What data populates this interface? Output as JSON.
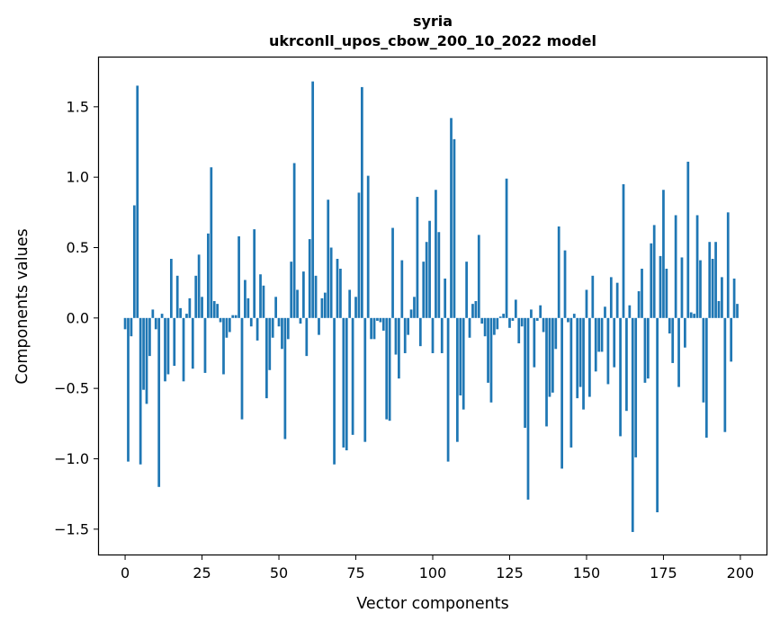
{
  "chart_data": {
    "type": "bar",
    "title": "syria",
    "subtitle": "ukrconll_upos_cbow_200_10_2022 model",
    "xlabel": "Vector components",
    "ylabel": "Components values",
    "xlim": [
      -8.5,
      208.5
    ],
    "ylim": [
      -1.68,
      1.85
    ],
    "xticks": [
      0,
      25,
      50,
      75,
      100,
      125,
      150,
      175,
      200
    ],
    "yticks": [
      -1.5,
      -1.0,
      -0.5,
      0.0,
      0.5,
      1.0,
      1.5
    ],
    "ytick_labels": [
      "−1.5",
      "−1.0",
      "−0.5",
      "0.0",
      "0.5",
      "1.0",
      "1.5"
    ],
    "grid": false,
    "bar_color": "#1f77b4",
    "values": [
      -0.08,
      -1.02,
      -0.13,
      0.8,
      1.65,
      -1.04,
      -0.51,
      -0.61,
      -0.27,
      0.06,
      -0.08,
      -1.2,
      0.03,
      -0.45,
      -0.4,
      0.42,
      -0.34,
      0.3,
      0.07,
      -0.45,
      0.03,
      0.14,
      -0.36,
      0.3,
      0.45,
      0.15,
      -0.39,
      0.6,
      1.07,
      0.12,
      0.1,
      -0.03,
      -0.4,
      -0.14,
      -0.1,
      0.02,
      0.02,
      0.58,
      -0.72,
      0.27,
      0.14,
      -0.06,
      0.63,
      -0.16,
      0.31,
      0.23,
      -0.57,
      -0.37,
      -0.14,
      0.15,
      -0.06,
      -0.22,
      -0.86,
      -0.15,
      0.4,
      1.1,
      0.2,
      -0.04,
      0.33,
      -0.27,
      0.56,
      1.68,
      0.3,
      -0.12,
      0.14,
      0.18,
      0.84,
      0.5,
      -1.04,
      0.42,
      0.35,
      -0.92,
      -0.94,
      0.2,
      -0.83,
      0.15,
      0.89,
      1.64,
      -0.88,
      1.01,
      -0.15,
      -0.15,
      -0.02,
      -0.03,
      -0.09,
      -0.72,
      -0.73,
      0.64,
      -0.26,
      -0.43,
      0.41,
      -0.25,
      -0.12,
      0.06,
      0.15,
      0.86,
      -0.2,
      0.4,
      0.54,
      0.69,
      -0.25,
      0.91,
      0.61,
      -0.25,
      0.28,
      -1.02,
      1.42,
      1.27,
      -0.88,
      -0.55,
      -0.65,
      0.4,
      -0.14,
      0.1,
      0.12,
      0.59,
      -0.04,
      -0.13,
      -0.46,
      -0.6,
      -0.12,
      -0.08,
      0.01,
      0.03,
      0.99,
      -0.07,
      -0.02,
      0.13,
      -0.18,
      -0.06,
      -0.78,
      -1.29,
      0.06,
      -0.35,
      -0.02,
      0.09,
      -0.1,
      -0.77,
      -0.56,
      -0.53,
      -0.22,
      0.65,
      -1.07,
      0.48,
      -0.03,
      -0.92,
      0.03,
      -0.57,
      -0.49,
      -0.65,
      0.2,
      -0.56,
      0.3,
      -0.38,
      -0.24,
      -0.24,
      0.08,
      -0.47,
      0.29,
      -0.35,
      0.25,
      -0.84,
      0.95,
      -0.66,
      0.09,
      -1.52,
      -0.99,
      0.19,
      0.35,
      -0.46,
      -0.43,
      0.53,
      0.66,
      -1.38,
      0.44,
      0.91,
      0.35,
      -0.11,
      -0.32,
      0.73,
      -0.49,
      0.43,
      -0.21,
      1.11,
      0.04,
      0.03,
      0.73,
      0.41,
      -0.6,
      -0.85,
      0.54,
      0.42,
      0.54,
      0.12,
      0.29,
      -0.81,
      0.75,
      -0.31,
      0.28,
      0.1
    ]
  }
}
